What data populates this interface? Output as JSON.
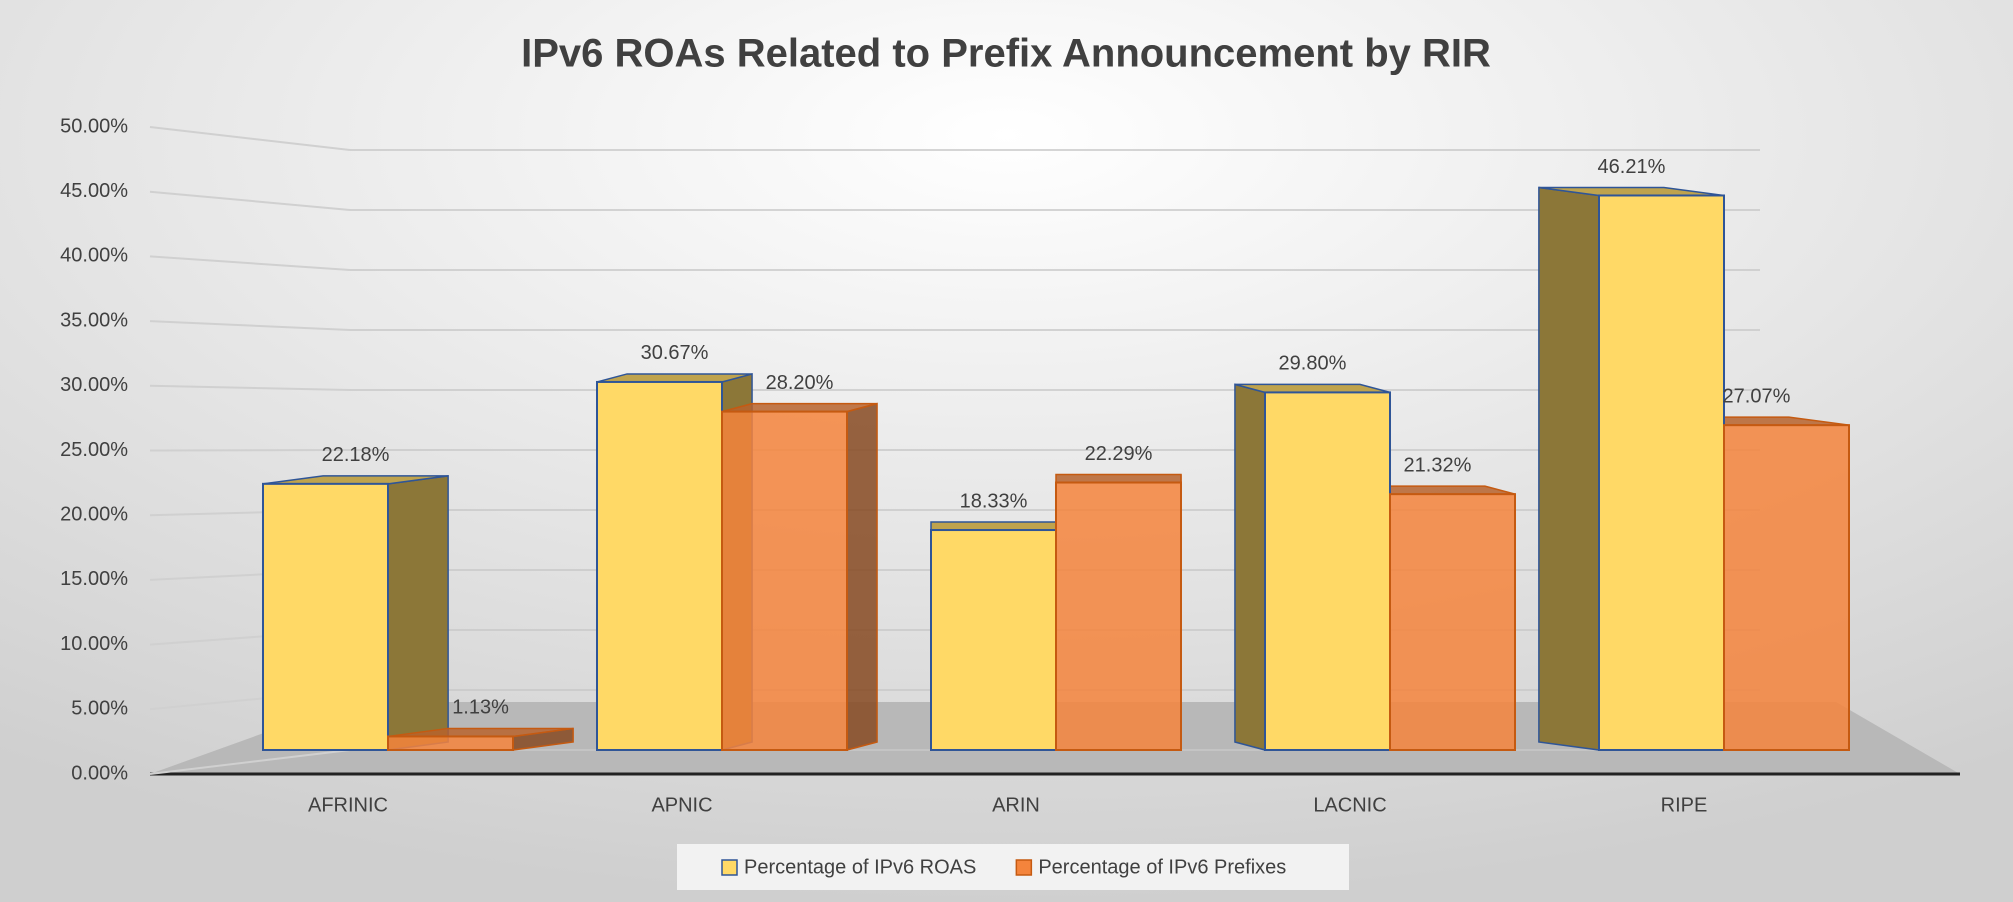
{
  "chart_data": {
    "type": "bar",
    "title": "IPv6 ROAs Related to Prefix Announcement by RIR",
    "categories": [
      "AFRINIC",
      "APNIC",
      "ARIN",
      "LACNIC",
      "RIPE"
    ],
    "series": [
      {
        "name": "Percentage of IPv6 ROAS",
        "color": "#ffd966",
        "values": [
          22.18,
          30.67,
          18.33,
          29.8,
          46.21
        ],
        "value_labels": [
          "22.18%",
          "30.67%",
          "18.33%",
          "29.80%",
          "46.21%"
        ]
      },
      {
        "name": "Percentage of IPv6 Prefixes",
        "color": "#f4843c",
        "values": [
          1.13,
          28.2,
          22.29,
          21.32,
          27.07
        ],
        "value_labels": [
          "1.13%",
          "28.20%",
          "22.29%",
          "21.32%",
          "27.07%"
        ]
      }
    ],
    "ylim": [
      0,
      50
    ],
    "yticks": [
      {
        "value": 0,
        "label": "0.00%"
      },
      {
        "value": 5,
        "label": "5.00%"
      },
      {
        "value": 10,
        "label": "10.00%"
      },
      {
        "value": 15,
        "label": "15.00%"
      },
      {
        "value": 20,
        "label": "20.00%"
      },
      {
        "value": 25,
        "label": "25.00%"
      },
      {
        "value": 30,
        "label": "30.00%"
      },
      {
        "value": 35,
        "label": "35.00%"
      },
      {
        "value": 40,
        "label": "40.00%"
      },
      {
        "value": 45,
        "label": "45.00%"
      },
      {
        "value": 50,
        "label": "50.00%"
      }
    ],
    "grid": true,
    "legend": "bottom"
  }
}
